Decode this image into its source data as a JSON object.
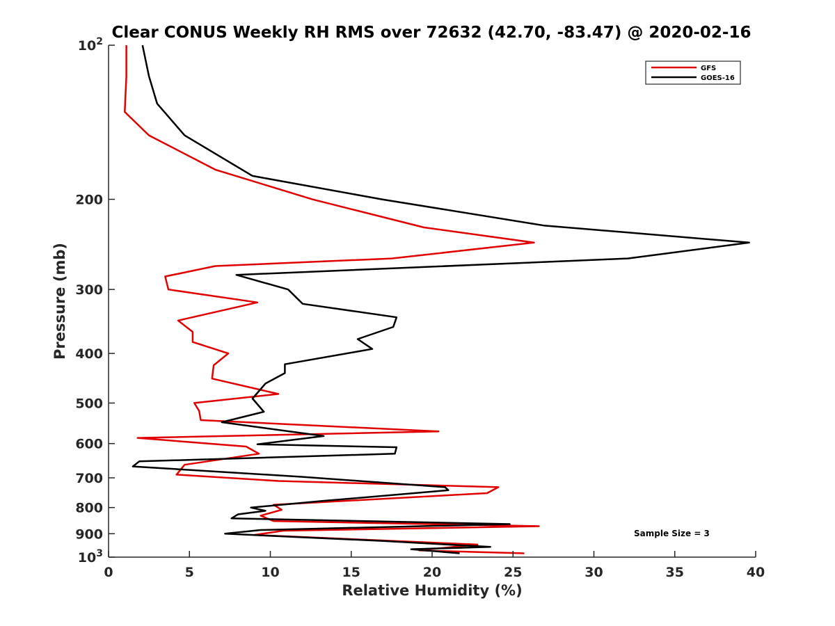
{
  "chart_data": {
    "type": "line",
    "title": "Clear CONUS Weekly RH RMS over 72632 (42.70, -83.47) @ 2020-02-16",
    "xlabel": "Relative Humidity (%)",
    "ylabel": "Pressure (mb)",
    "xlim": [
      0,
      40
    ],
    "ylim": [
      100,
      1000
    ],
    "y_scale": "log",
    "y_reversed": true,
    "grid": false,
    "legend_position": "top-right",
    "x_ticks": [
      "0",
      "5",
      "10",
      "15",
      "20",
      "25",
      "30",
      "35",
      "40"
    ],
    "y_ticks": [
      {
        "value": 100,
        "base": "10",
        "exp": "2"
      },
      {
        "value": 200,
        "label": "200"
      },
      {
        "value": 300,
        "label": "300"
      },
      {
        "value": 400,
        "label": "400"
      },
      {
        "value": 500,
        "label": "500"
      },
      {
        "value": 600,
        "label": "600"
      },
      {
        "value": 700,
        "label": "700"
      },
      {
        "value": 800,
        "label": "800"
      },
      {
        "value": 900,
        "label": "900"
      },
      {
        "value": 1000,
        "base": "10",
        "exp": "3"
      }
    ],
    "annotation": "Sample Size = 3",
    "series": [
      {
        "name": "GFS",
        "color": "#e00000",
        "points": [
          [
            1.1,
            100
          ],
          [
            1.1,
            115
          ],
          [
            1.0,
            135
          ],
          [
            2.5,
            150
          ],
          [
            6.6,
            175
          ],
          [
            12.6,
            200
          ],
          [
            19.5,
            227
          ],
          [
            26.3,
            243
          ],
          [
            17.5,
            261
          ],
          [
            6.6,
            270
          ],
          [
            3.5,
            283
          ],
          [
            3.7,
            300
          ],
          [
            9.2,
            318
          ],
          [
            4.3,
            345
          ],
          [
            5.2,
            363
          ],
          [
            5.2,
            380
          ],
          [
            7.4,
            400
          ],
          [
            6.5,
            422
          ],
          [
            6.4,
            448
          ],
          [
            10.5,
            480
          ],
          [
            5.3,
            500
          ],
          [
            5.6,
            518
          ],
          [
            5.7,
            540
          ],
          [
            20.4,
            568
          ],
          [
            1.8,
            585
          ],
          [
            8.5,
            608
          ],
          [
            9.3,
            628
          ],
          [
            4.7,
            660
          ],
          [
            4.2,
            690
          ],
          [
            10.5,
            710
          ],
          [
            24.1,
            730
          ],
          [
            23.4,
            750
          ],
          [
            10.2,
            790
          ],
          [
            10.7,
            808
          ],
          [
            9.4,
            830
          ],
          [
            10.2,
            850
          ],
          [
            26.6,
            870
          ],
          [
            10.8,
            888
          ],
          [
            9.0,
            905
          ],
          [
            22.8,
            945
          ],
          [
            19.2,
            970
          ],
          [
            25.7,
            983
          ]
        ]
      },
      {
        "name": "GOES-16",
        "color": "#000000",
        "points": [
          [
            2.1,
            100
          ],
          [
            2.5,
            115
          ],
          [
            3.0,
            130
          ],
          [
            4.7,
            150
          ],
          [
            8.9,
            180
          ],
          [
            16.9,
            200
          ],
          [
            26.9,
            225
          ],
          [
            39.6,
            243
          ],
          [
            32.1,
            261
          ],
          [
            7.9,
            281
          ],
          [
            11.1,
            300
          ],
          [
            12.0,
            320
          ],
          [
            17.8,
            340
          ],
          [
            17.6,
            355
          ],
          [
            15.4,
            375
          ],
          [
            16.3,
            392
          ],
          [
            10.9,
            420
          ],
          [
            10.9,
            437
          ],
          [
            9.7,
            458
          ],
          [
            8.9,
            490
          ],
          [
            9.6,
            520
          ],
          [
            7.0,
            545
          ],
          [
            13.3,
            580
          ],
          [
            9.2,
            602
          ],
          [
            17.8,
            610
          ],
          [
            17.7,
            628
          ],
          [
            1.9,
            650
          ],
          [
            1.5,
            665
          ],
          [
            12.0,
            697
          ],
          [
            20.8,
            730
          ],
          [
            21.0,
            740
          ],
          [
            13.2,
            777
          ],
          [
            8.8,
            800
          ],
          [
            9.7,
            812
          ],
          [
            8.0,
            825
          ],
          [
            7.6,
            840
          ],
          [
            24.8,
            862
          ],
          [
            9.4,
            885
          ],
          [
            7.2,
            900
          ],
          [
            17.0,
            930
          ],
          [
            23.6,
            955
          ],
          [
            18.7,
            965
          ],
          [
            21.7,
            983
          ]
        ]
      }
    ]
  }
}
